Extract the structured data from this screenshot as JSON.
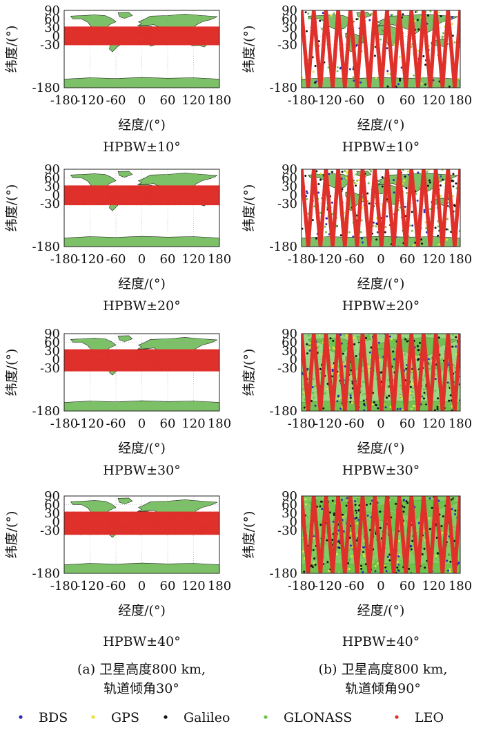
{
  "chart_data": {
    "type": "scatter",
    "description_kind": "ground-track maps",
    "common": {
      "xlim": [
        -180,
        180
      ],
      "ylim": [
        -180,
        90
      ],
      "xticks": [
        -180,
        -120,
        -60,
        0,
        60,
        120,
        180
      ],
      "yticks": [
        90,
        60,
        30,
        0,
        -30,
        -180
      ],
      "xlabel": "经度/(°)",
      "ylabel": "纬度/(°)",
      "legend": [
        "BDS",
        "GPS",
        "Galileo",
        "GLONASS",
        "LEO"
      ],
      "legend_colors": [
        "#2b2bb5",
        "#e8e33a",
        "#111111",
        "#6cc24a",
        "#e0302a"
      ],
      "legend_placement": "bottom"
    },
    "panels": [
      {
        "column": "a",
        "row": 0,
        "title": "HPBW±10°",
        "inclination": 30,
        "band_lat": [
          -28,
          30
        ],
        "density": 0.3
      },
      {
        "column": "a",
        "row": 1,
        "title": "HPBW±20°",
        "inclination": 30,
        "band_lat": [
          -32,
          30
        ],
        "density": 0.5
      },
      {
        "column": "a",
        "row": 2,
        "title": "HPBW±30°",
        "inclination": 30,
        "band_lat": [
          -38,
          32
        ],
        "density": 0.7
      },
      {
        "column": "a",
        "row": 3,
        "title": "HPBW±40°",
        "inclination": 30,
        "band_lat": [
          -42,
          32
        ],
        "density": 0.8
      },
      {
        "column": "b",
        "row": 0,
        "title": "HPBW±10°",
        "inclination": 90,
        "band_lat": [
          -180,
          90
        ],
        "density": 0.3
      },
      {
        "column": "b",
        "row": 1,
        "title": "HPBW±20°",
        "inclination": 90,
        "band_lat": [
          -180,
          90
        ],
        "density": 0.5
      },
      {
        "column": "b",
        "row": 2,
        "title": "HPBW±30°",
        "inclination": 90,
        "band_lat": [
          -180,
          90
        ],
        "density": 0.8
      },
      {
        "column": "b",
        "row": 3,
        "title": "HPBW±40°",
        "inclination": 90,
        "band_lat": [
          -180,
          90
        ],
        "density": 1.0
      }
    ],
    "captions": {
      "a_line1": "(a) 卫星高度800 km,",
      "a_line2": "轨道倾角30°",
      "b_line1": "(b) 卫星高度800 km,",
      "b_line2": "轨道倾角90°"
    }
  }
}
